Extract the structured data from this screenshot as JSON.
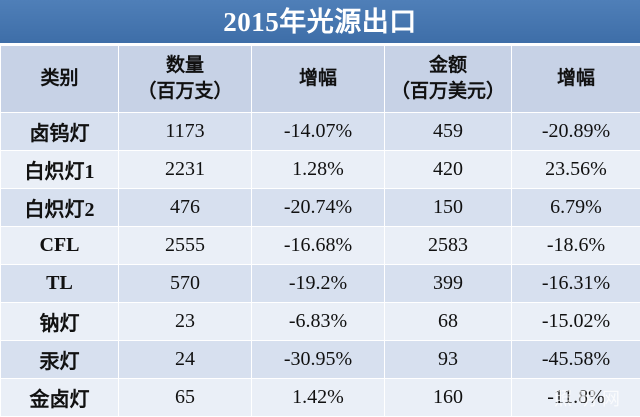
{
  "title": "2015年光源出口",
  "header": {
    "category": "类别",
    "quantity": [
      "数量",
      "（百万支）"
    ],
    "quantity_growth": "增幅",
    "amount": [
      "金额",
      "（百万美元）"
    ],
    "amount_growth": "增幅"
  },
  "rows": [
    {
      "category": "卤钨灯",
      "quantity": "1173",
      "quantity_growth": "-14.07%",
      "amount": "459",
      "amount_growth": "-20.89%"
    },
    {
      "category": "白炽灯1",
      "quantity": "2231",
      "quantity_growth": "1.28%",
      "amount": "420",
      "amount_growth": "23.56%"
    },
    {
      "category": "白炽灯2",
      "quantity": "476",
      "quantity_growth": "-20.74%",
      "amount": "150",
      "amount_growth": "6.79%"
    },
    {
      "category": "CFL",
      "quantity": "2555",
      "quantity_growth": "-16.68%",
      "amount": "2583",
      "amount_growth": "-18.6%"
    },
    {
      "category": "TL",
      "quantity": "570",
      "quantity_growth": "-19.2%",
      "amount": "399",
      "amount_growth": "-16.31%"
    },
    {
      "category": "钠灯",
      "quantity": "23",
      "quantity_growth": "-6.83%",
      "amount": "68",
      "amount_growth": "-15.02%"
    },
    {
      "category": "汞灯",
      "quantity": "24",
      "quantity_growth": "-30.95%",
      "amount": "93",
      "amount_growth": "-45.58%"
    },
    {
      "category": "金卤灯",
      "quantity": "65",
      "quantity_growth": "1.42%",
      "amount": "160",
      "amount_growth": "-11.8%"
    }
  ],
  "watermark": "照明网",
  "colors": {
    "title_bg": "#4575b0",
    "header_bg": "#c7d2e6",
    "row_dark": "#d7e0ef",
    "row_light": "#eaeff7"
  }
}
